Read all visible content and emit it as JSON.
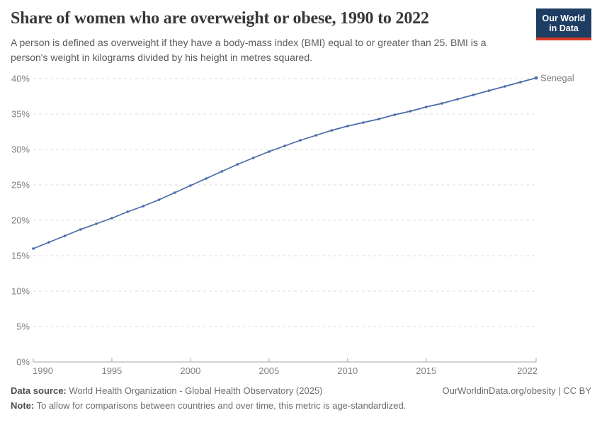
{
  "header": {
    "title": "Share of women who are overweight or obese, 1990 to 2022",
    "subtitle_line1": "A person is defined as overweight if they have a body-mass index (BMI) equal to or greater than 25. BMI is a",
    "subtitle_line2": "person's weight in kilograms divided by his height in metres squared.",
    "logo": {
      "line1": "Our World",
      "line2": "in Data"
    }
  },
  "chart_data": {
    "type": "line",
    "title": "Share of women who are overweight or obese, 1990 to 2022",
    "entity": "Senegal",
    "x": [
      1990,
      1991,
      1992,
      1993,
      1994,
      1995,
      1996,
      1997,
      1998,
      1999,
      2000,
      2001,
      2002,
      2003,
      2004,
      2005,
      2006,
      2007,
      2008,
      2009,
      2010,
      2011,
      2012,
      2013,
      2014,
      2015,
      2016,
      2017,
      2018,
      2019,
      2020,
      2021,
      2022
    ],
    "series": [
      {
        "name": "Senegal",
        "values": [
          16.0,
          16.9,
          17.8,
          18.7,
          19.5,
          20.3,
          21.2,
          22.0,
          22.9,
          23.9,
          24.9,
          25.9,
          26.9,
          27.9,
          28.8,
          29.7,
          30.5,
          31.3,
          32.0,
          32.7,
          33.3,
          33.8,
          34.3,
          34.9,
          35.4,
          36.0,
          36.5,
          37.1,
          37.7,
          38.3,
          38.9,
          39.5,
          40.1
        ]
      }
    ],
    "xlabel": "",
    "ylabel": "",
    "ylim": [
      0,
      40
    ],
    "yticks": [
      0,
      5,
      10,
      15,
      20,
      25,
      30,
      35,
      40
    ],
    "ytick_suffix": "%",
    "xticks": [
      1990,
      1995,
      2000,
      2005,
      2010,
      2015,
      2022
    ],
    "grid": "horizontal-dashed",
    "legend_position": "end-of-line-label"
  },
  "colors": {
    "line": "#4a6ba8",
    "series_label": "#3d6bb0",
    "grid": "#dcdcdc",
    "axis": "#a6a6a6",
    "tick_label": "#7f7f7f",
    "logo_bg": "#1d3d63",
    "logo_accent": "#d93a27"
  },
  "footer": {
    "data_source_label": "Data source:",
    "data_source_text": " World Health Organization - Global Health Observatory (2025)",
    "citation": "OurWorldinData.org/obesity | CC BY",
    "note_label": "Note:",
    "note_text": " To allow for comparisons between countries and over time, this metric is age-standardized."
  }
}
